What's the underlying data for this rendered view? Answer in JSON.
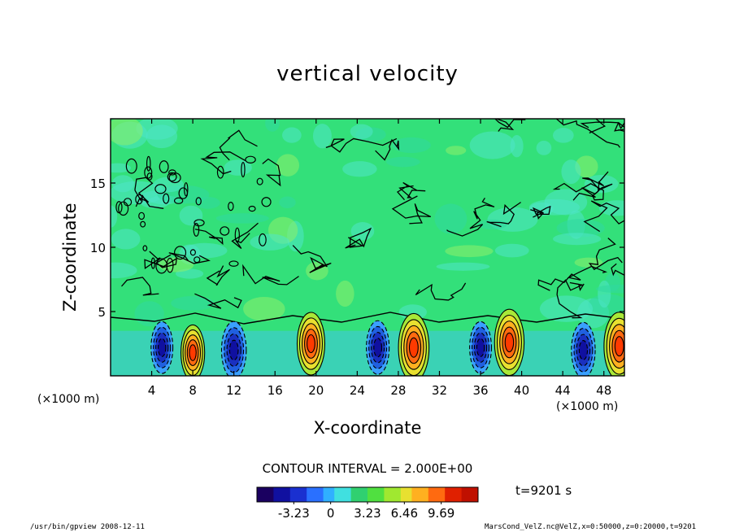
{
  "chart_data": {
    "type": "heatmap",
    "title": "vertical velocity",
    "xlabel": "X-coordinate",
    "ylabel": "Z-coordinate",
    "x_unit_left": "(×1000 m)",
    "x_unit_right": "(×1000 m)",
    "xlim": [
      0,
      50
    ],
    "ylim": [
      0,
      20
    ],
    "x_ticks": [
      4,
      8,
      12,
      16,
      20,
      24,
      28,
      32,
      36,
      40,
      44,
      48
    ],
    "y_ticks": [
      5,
      10,
      15
    ],
    "contour_interval_text": "CONTOUR INTERVAL = 2.000E+00",
    "time_text": "t=9201 s",
    "colorbar": {
      "min": -6.46,
      "max": 12.92,
      "tick_values": [
        -3.23,
        0,
        3.23,
        6.46,
        9.69
      ],
      "tick_labels": [
        "-3.23",
        "0",
        "3.23",
        "6.46",
        "9.69"
      ]
    },
    "features": [
      {
        "type": "updraft",
        "x": 19.5,
        "z": 2.5,
        "w": 7.5
      },
      {
        "type": "updraft",
        "x": 29.5,
        "z": 2.2,
        "w": 9.0
      },
      {
        "type": "updraft",
        "x": 38.8,
        "z": 2.6,
        "w": 8.5
      },
      {
        "type": "updraft",
        "x": 49.5,
        "z": 2.3,
        "w": 9.0
      },
      {
        "type": "updraft",
        "x": 8.0,
        "z": 1.8,
        "w": 5.5
      },
      {
        "type": "downdraft",
        "x": 12.0,
        "z": 2.0,
        "w": -6.0
      },
      {
        "type": "downdraft",
        "x": 5.0,
        "z": 2.2,
        "w": -4.5
      },
      {
        "type": "downdraft",
        "x": 26.0,
        "z": 2.2,
        "w": -5.0
      },
      {
        "type": "downdraft",
        "x": 36.0,
        "z": 2.2,
        "w": -4.5
      },
      {
        "type": "downdraft",
        "x": 46.0,
        "z": 2.0,
        "w": -5.5
      }
    ]
  },
  "footer": {
    "left": "/usr/bin/gpview  2008-12-11",
    "right": "MarsCond_VelZ.nc@VelZ,x=0:50000,z=0:20000,t=9201"
  },
  "colors": {
    "background_field": "#33e07a",
    "updraft_core": "#ff3a00",
    "downdraft_core": "#1010a0"
  }
}
